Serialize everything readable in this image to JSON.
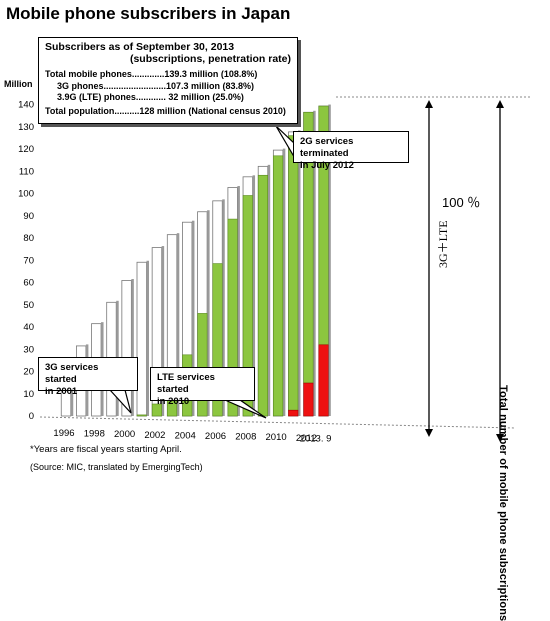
{
  "title": "Mobile phone subscribers in Japan",
  "info_box": {
    "heading": "Subscribers as of September 30, 2013",
    "subheading": "(subscriptions, penetration rate)",
    "rows": [
      "Total mobile phones.............139.3 million  (108.8%)",
      "3G phones.........................107.3 million (83.8%)",
      "3.9G (LTE) phones............  32 million (25.0%)",
      "Total population..........128 million (National census 2010)"
    ]
  },
  "callouts": {
    "g2": [
      "2G services terminated",
      "in July 2012"
    ],
    "g3": [
      "3G services started",
      "in 2001"
    ],
    "lte": [
      "LTE services started",
      "in 2010"
    ]
  },
  "footnote": "*Years are fiscal years starting April.",
  "source": "(Source: MIC, translated by EmergingTech)",
  "right_labels": {
    "percent": "100 ％",
    "g3lte": "3G＋LTE",
    "total": "Total number of mobile phone subscriptions"
  },
  "colors": {
    "total_bar": "#ffffff",
    "g3_bar": "#8cc63f",
    "lte_bar": "#ee1111"
  },
  "chart_data": {
    "type": "bar",
    "ylabel": "Million",
    "ylim": [
      0,
      140
    ],
    "yticks": [
      0,
      10,
      20,
      30,
      40,
      50,
      60,
      70,
      80,
      90,
      100,
      110,
      120,
      130,
      140
    ],
    "categories": [
      "1996",
      "1997",
      "1998",
      "1999",
      "2000",
      "2001",
      "2002",
      "2003",
      "2004",
      "2005",
      "2006",
      "2007",
      "2008",
      "2009",
      "2010",
      "2011",
      "2012",
      "2013. 9"
    ],
    "x_tick_labels": [
      "1996",
      "1998",
      "2000",
      "2002",
      "2004",
      "2006",
      "2008",
      "2010",
      "2012",
      "2013. 9"
    ],
    "series": [
      {
        "name": "Total mobile phones",
        "values": [
          20.9,
          31.5,
          41.5,
          51.1,
          60.9,
          69.1,
          75.7,
          81.5,
          87.1,
          91.8,
          96.7,
          102.7,
          107.5,
          112.2,
          119.5,
          127.7,
          136.5,
          139.3
        ]
      },
      {
        "name": "3G phones",
        "values": [
          0,
          0,
          0,
          0,
          0,
          0.5,
          5.4,
          15.4,
          27.5,
          46.1,
          68.5,
          88.5,
          99.1,
          108.2,
          116.9,
          123.4,
          121.7,
          107.3
        ]
      },
      {
        "name": "3.9G (LTE) phones",
        "values": [
          0,
          0,
          0,
          0,
          0,
          0,
          0,
          0,
          0,
          0,
          0,
          0,
          0,
          0,
          0.04,
          2.6,
          14.8,
          32
        ]
      }
    ],
    "legend": "none",
    "grid": false
  }
}
